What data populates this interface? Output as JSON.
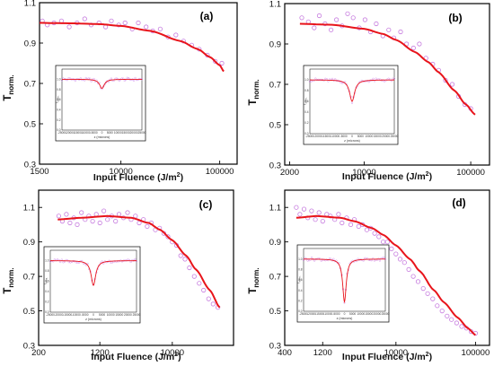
{
  "chart_data": [
    {
      "type": "scatter",
      "panel_label": "(a)",
      "xlabel": "Input Fluence (J/m",
      "xlabel_sup": "2",
      "xlabel_end": ")",
      "ylabel": "T",
      "ylabel_sub": "norm.",
      "x_scale": "log",
      "xlim": [
        1500,
        150000
      ],
      "ylim": [
        0.3,
        1.1
      ],
      "x_ticks": [
        1500,
        10000,
        100000
      ],
      "x_tick_labels": [
        "1500",
        "10000",
        "100000"
      ],
      "y_ticks": [
        0.3,
        0.5,
        0.7,
        0.9,
        1.1
      ],
      "y_tick_labels": [
        "0.3",
        "0.5",
        "0.7",
        "0.9",
        "1.1"
      ],
      "series": [
        {
          "values": {
            "x": [
              1600,
              1800,
              2100,
              2500,
              3000,
              3600,
              4300,
              5000,
              6000,
              7000,
              8000,
              9500,
              11000,
              13000,
              15000,
              18000,
              21000,
              25000,
              30000,
              36000,
              43000,
              52000,
              62000,
              75000,
              90000,
              105000
            ],
            "y": [
              1.01,
              0.99,
              1.0,
              1.01,
              0.98,
              1.0,
              1.02,
              0.99,
              1.0,
              0.98,
              1.01,
              0.99,
              1.0,
              0.97,
              1.0,
              0.98,
              0.96,
              0.97,
              0.93,
              0.94,
              0.91,
              0.89,
              0.87,
              0.84,
              0.81,
              0.8
            ]
          }
        },
        {
          "values": {
            "x": [
              1500,
              3000,
              6000,
              10000,
              20000,
              40000,
              60000,
              80000,
              100000,
              110000
            ],
            "y": [
              1.0,
              0.998,
              0.994,
              0.985,
              0.96,
              0.91,
              0.87,
              0.83,
              0.79,
              0.76
            ]
          }
        }
      ],
      "inset": {
        "xlabel": "z (microns)",
        "ylabel": "T",
        "ylabel_sub": "norm.",
        "x_tick_labels": [
          "-25000",
          "-20000",
          "-15000",
          "-10000",
          "-5000",
          "0",
          "5000",
          "10000",
          "15000",
          "20000",
          "25000"
        ],
        "y_tick_labels": [
          "0.0",
          "0.2",
          "0.4",
          "0.6",
          "0.8",
          "1.0"
        ],
        "xlim": [
          -25000,
          25000
        ],
        "ylim": [
          0,
          1.2
        ],
        "dip_min": 0.82,
        "dip_width": 1800
      }
    },
    {
      "type": "scatter",
      "panel_label": "(b)",
      "xlabel": "Input Fluence (J/m",
      "xlabel_sup": "2",
      "xlabel_end": ")",
      "ylabel": "T",
      "ylabel_sub": "norm.",
      "x_scale": "log",
      "xlim": [
        1800,
        150000
      ],
      "ylim": [
        0.3,
        1.1
      ],
      "x_ticks": [
        2000,
        10000,
        100000
      ],
      "x_tick_labels": [
        "2000",
        "10000",
        "100000"
      ],
      "y_ticks": [
        0.3,
        0.5,
        0.7,
        0.9,
        1.1
      ],
      "y_tick_labels": [
        "0.3",
        "0.5",
        "0.7",
        "0.9",
        "1.1"
      ],
      "series": [
        {
          "values": {
            "x": [
              2600,
              3000,
              3400,
              3800,
              4300,
              4900,
              5500,
              6200,
              7000,
              7900,
              9000,
              10200,
              11500,
              13000,
              15000,
              17000,
              19000,
              22000,
              25000,
              29000,
              33000,
              38000,
              44000,
              50000,
              58000,
              67000,
              77000,
              88000,
              100000
            ],
            "y": [
              1.03,
              1.01,
              0.98,
              1.04,
              1.0,
              0.97,
              1.02,
              0.99,
              1.05,
              1.03,
              0.98,
              1.02,
              0.96,
              1.0,
              0.94,
              0.97,
              0.93,
              0.96,
              0.9,
              0.88,
              0.9,
              0.83,
              0.8,
              0.77,
              0.72,
              0.7,
              0.64,
              0.6,
              0.58
            ]
          }
        },
        {
          "values": {
            "x": [
              2500,
              5000,
              10000,
              15000,
              20000,
              30000,
              40000,
              50000,
              70000,
              90000,
              110000
            ],
            "y": [
              1.0,
              0.995,
              0.975,
              0.95,
              0.92,
              0.86,
              0.81,
              0.76,
              0.67,
              0.6,
              0.55
            ]
          }
        }
      ],
      "inset": {
        "xlabel": "z (microns)",
        "ylabel": "T",
        "ylabel_sub": "norm.",
        "x_tick_labels": [
          "-25000",
          "-20000",
          "-15000",
          "-10000",
          "-5000",
          "0",
          "5000",
          "10000",
          "15000",
          "20000",
          "25000"
        ],
        "y_tick_labels": [
          "0.0",
          "0.2",
          "0.4",
          "0.6",
          "0.8",
          "1.0"
        ],
        "xlim": [
          -25000,
          25000
        ],
        "ylim": [
          0,
          1.2
        ],
        "dip_min": 0.6,
        "dip_width": 1800
      }
    },
    {
      "type": "scatter",
      "panel_label": "(c)",
      "xlabel": "Input Fluence (J/m",
      "xlabel_sup": "2",
      "xlabel_end": ")",
      "ylabel": "T",
      "ylabel_sub": "norm.",
      "x_scale": "log",
      "xlim": [
        200,
        60000
      ],
      "ylim": [
        0.3,
        1.2
      ],
      "x_ticks": [
        200,
        1200,
        10000
      ],
      "x_tick_labels": [
        "200",
        "1200",
        "10000"
      ],
      "y_ticks": [
        0.3,
        0.5,
        0.7,
        0.9,
        1.1
      ],
      "y_tick_labels": [
        "0.3",
        "0.5",
        "0.7",
        "0.9",
        "1.1"
      ],
      "series": [
        {
          "values": {
            "x": [
              360,
              400,
              450,
              500,
              560,
              620,
              700,
              780,
              870,
              970,
              1080,
              1200,
              1350,
              1500,
              1700,
              1900,
              2100,
              2400,
              2700,
              3000,
              3400,
              3800,
              4300,
              4800,
              5400,
              6100,
              6900,
              7800,
              8800,
              10000,
              11300,
              12800,
              14500,
              16500,
              19000,
              22000,
              25000,
              29000,
              33000,
              38000
            ],
            "y": [
              1.05,
              1.02,
              1.06,
              1.01,
              1.04,
              1.0,
              1.07,
              1.03,
              1.05,
              1.02,
              1.06,
              1.01,
              1.08,
              1.03,
              1.05,
              1.02,
              1.06,
              1.04,
              1.07,
              1.03,
              1.05,
              1.01,
              1.03,
              0.99,
              1.01,
              0.97,
              0.98,
              0.95,
              0.93,
              0.9,
              0.88,
              0.82,
              0.8,
              0.75,
              0.7,
              0.66,
              0.62,
              0.57,
              0.54,
              0.52
            ]
          }
        },
        {
          "values": {
            "x": [
              350,
              700,
              1500,
              3000,
              5000,
              7000,
              10000,
              15000,
              20000,
              30000,
              40000
            ],
            "y": [
              1.03,
              1.04,
              1.05,
              1.04,
              1.01,
              0.97,
              0.91,
              0.82,
              0.74,
              0.62,
              0.52
            ]
          }
        }
      ],
      "inset": {
        "xlabel": "z (microns)",
        "ylabel": "T",
        "ylabel_sub": "norm.",
        "x_tick_labels": [
          "-25000",
          "-20000",
          "-15000",
          "-10000",
          "-5000",
          "0",
          "5000",
          "10000",
          "15000",
          "20000",
          "25000"
        ],
        "y_tick_labels": [
          "0.0",
          "0.2",
          "0.4",
          "0.6",
          "0.8",
          "1.0"
        ],
        "xlim": [
          -25000,
          25000
        ],
        "ylim": [
          0,
          1.2
        ],
        "dip_min": 0.52,
        "dip_width": 1600
      }
    },
    {
      "type": "scatter",
      "panel_label": "(d)",
      "xlabel": "Input Fluence (J/m",
      "xlabel_sup": "2",
      "xlabel_end": ")",
      "ylabel": "T",
      "ylabel_sub": "norm.",
      "x_scale": "log",
      "xlim": [
        400,
        150000
      ],
      "ylim": [
        0.3,
        1.2
      ],
      "x_ticks": [
        400,
        1200,
        10000,
        100000
      ],
      "x_tick_labels": [
        "400",
        "1200",
        "10000",
        "100000"
      ],
      "y_ticks": [
        0.3,
        0.5,
        0.7,
        0.9,
        1.1
      ],
      "y_tick_labels": [
        "0.3",
        "0.5",
        "0.7",
        "0.9",
        "1.1"
      ],
      "series": [
        {
          "values": {
            "x": [
              560,
              620,
              700,
              780,
              870,
              970,
              1080,
              1200,
              1350,
              1500,
              1700,
              1900,
              2100,
              2400,
              2700,
              3000,
              3400,
              3800,
              4300,
              4800,
              5400,
              6100,
              6900,
              7800,
              8800,
              10000,
              11300,
              12800,
              14500,
              16500,
              19000,
              22000,
              25000,
              29000,
              33000,
              38000,
              44000,
              50000,
              58000,
              67000,
              77000,
              88000,
              100000
            ],
            "y": [
              1.1,
              1.06,
              1.09,
              1.04,
              1.08,
              1.03,
              1.07,
              1.02,
              1.06,
              1.05,
              1.03,
              1.06,
              1.01,
              1.04,
              1.0,
              1.03,
              0.99,
              1.0,
              0.97,
              0.98,
              0.95,
              0.93,
              0.9,
              0.9,
              0.86,
              0.83,
              0.8,
              0.78,
              0.74,
              0.7,
              0.67,
              0.63,
              0.6,
              0.57,
              0.53,
              0.5,
              0.47,
              0.45,
              0.43,
              0.41,
              0.4,
              0.38,
              0.37
            ]
          }
        },
        {
          "values": {
            "x": [
              560,
              1000,
              2000,
              3000,
              5000,
              7000,
              10000,
              15000,
              20000,
              30000,
              40000,
              60000,
              80000,
              100000
            ],
            "y": [
              1.04,
              1.05,
              1.04,
              1.02,
              0.98,
              0.94,
              0.88,
              0.8,
              0.73,
              0.62,
              0.55,
              0.46,
              0.4,
              0.36
            ]
          }
        }
      ],
      "inset": {
        "xlabel": "z (microns)",
        "ylabel": "T",
        "ylabel_sub": "norm.",
        "x_tick_labels": [
          "-25000",
          "-20000",
          "-15000",
          "-10000",
          "-5000",
          "0",
          "5000",
          "10000",
          "15000",
          "20000",
          "25000"
        ],
        "y_tick_labels": [
          "0.0",
          "0.2",
          "0.4",
          "0.6",
          "0.8",
          "1.0"
        ],
        "xlim": [
          -25000,
          25000
        ],
        "ylim": [
          0,
          1.2
        ],
        "dip_min": 0.18,
        "dip_width": 1300
      }
    }
  ]
}
